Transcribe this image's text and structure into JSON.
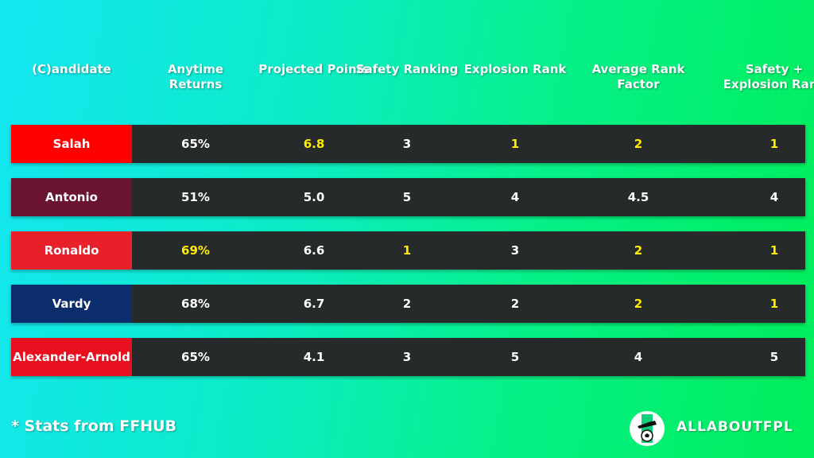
{
  "headers": [
    "(C)andidate",
    "Anytime Returns",
    "Projected Points",
    "Safety Ranking",
    "Explosion Rank",
    "Average Rank Factor",
    "Safety + Explosion Rank"
  ],
  "rows": [
    {
      "name": "Salah",
      "color": "#ff0000",
      "values": [
        "65%",
        "6.8",
        "3",
        "1",
        "2",
        "1"
      ],
      "highlight": [
        false,
        true,
        false,
        true,
        true,
        true
      ]
    },
    {
      "name": "Antonio",
      "color": "#6b1333",
      "values": [
        "51%",
        "5.0",
        "5",
        "4",
        "4.5",
        "4"
      ],
      "highlight": [
        false,
        false,
        false,
        false,
        false,
        false
      ]
    },
    {
      "name": "Ronaldo",
      "color": "#e8202a",
      "values": [
        "69%",
        "6.6",
        "1",
        "3",
        "2",
        "1"
      ],
      "highlight": [
        true,
        false,
        true,
        false,
        true,
        true
      ]
    },
    {
      "name": "Vardy",
      "color": "#0b2d6b",
      "values": [
        "68%",
        "6.7",
        "2",
        "2",
        "2",
        "1"
      ],
      "highlight": [
        false,
        false,
        false,
        false,
        true,
        true
      ]
    },
    {
      "name": "Alexander-Arnold",
      "color": "#e8101e",
      "values": [
        "65%",
        "4.1",
        "3",
        "5",
        "4",
        "5"
      ],
      "highlight": [
        false,
        false,
        false,
        false,
        false,
        false
      ]
    }
  ],
  "footnote": "* Stats from FFHUB",
  "brand": "ALLABOUTFPL",
  "highlight_color": "#ffee00"
}
